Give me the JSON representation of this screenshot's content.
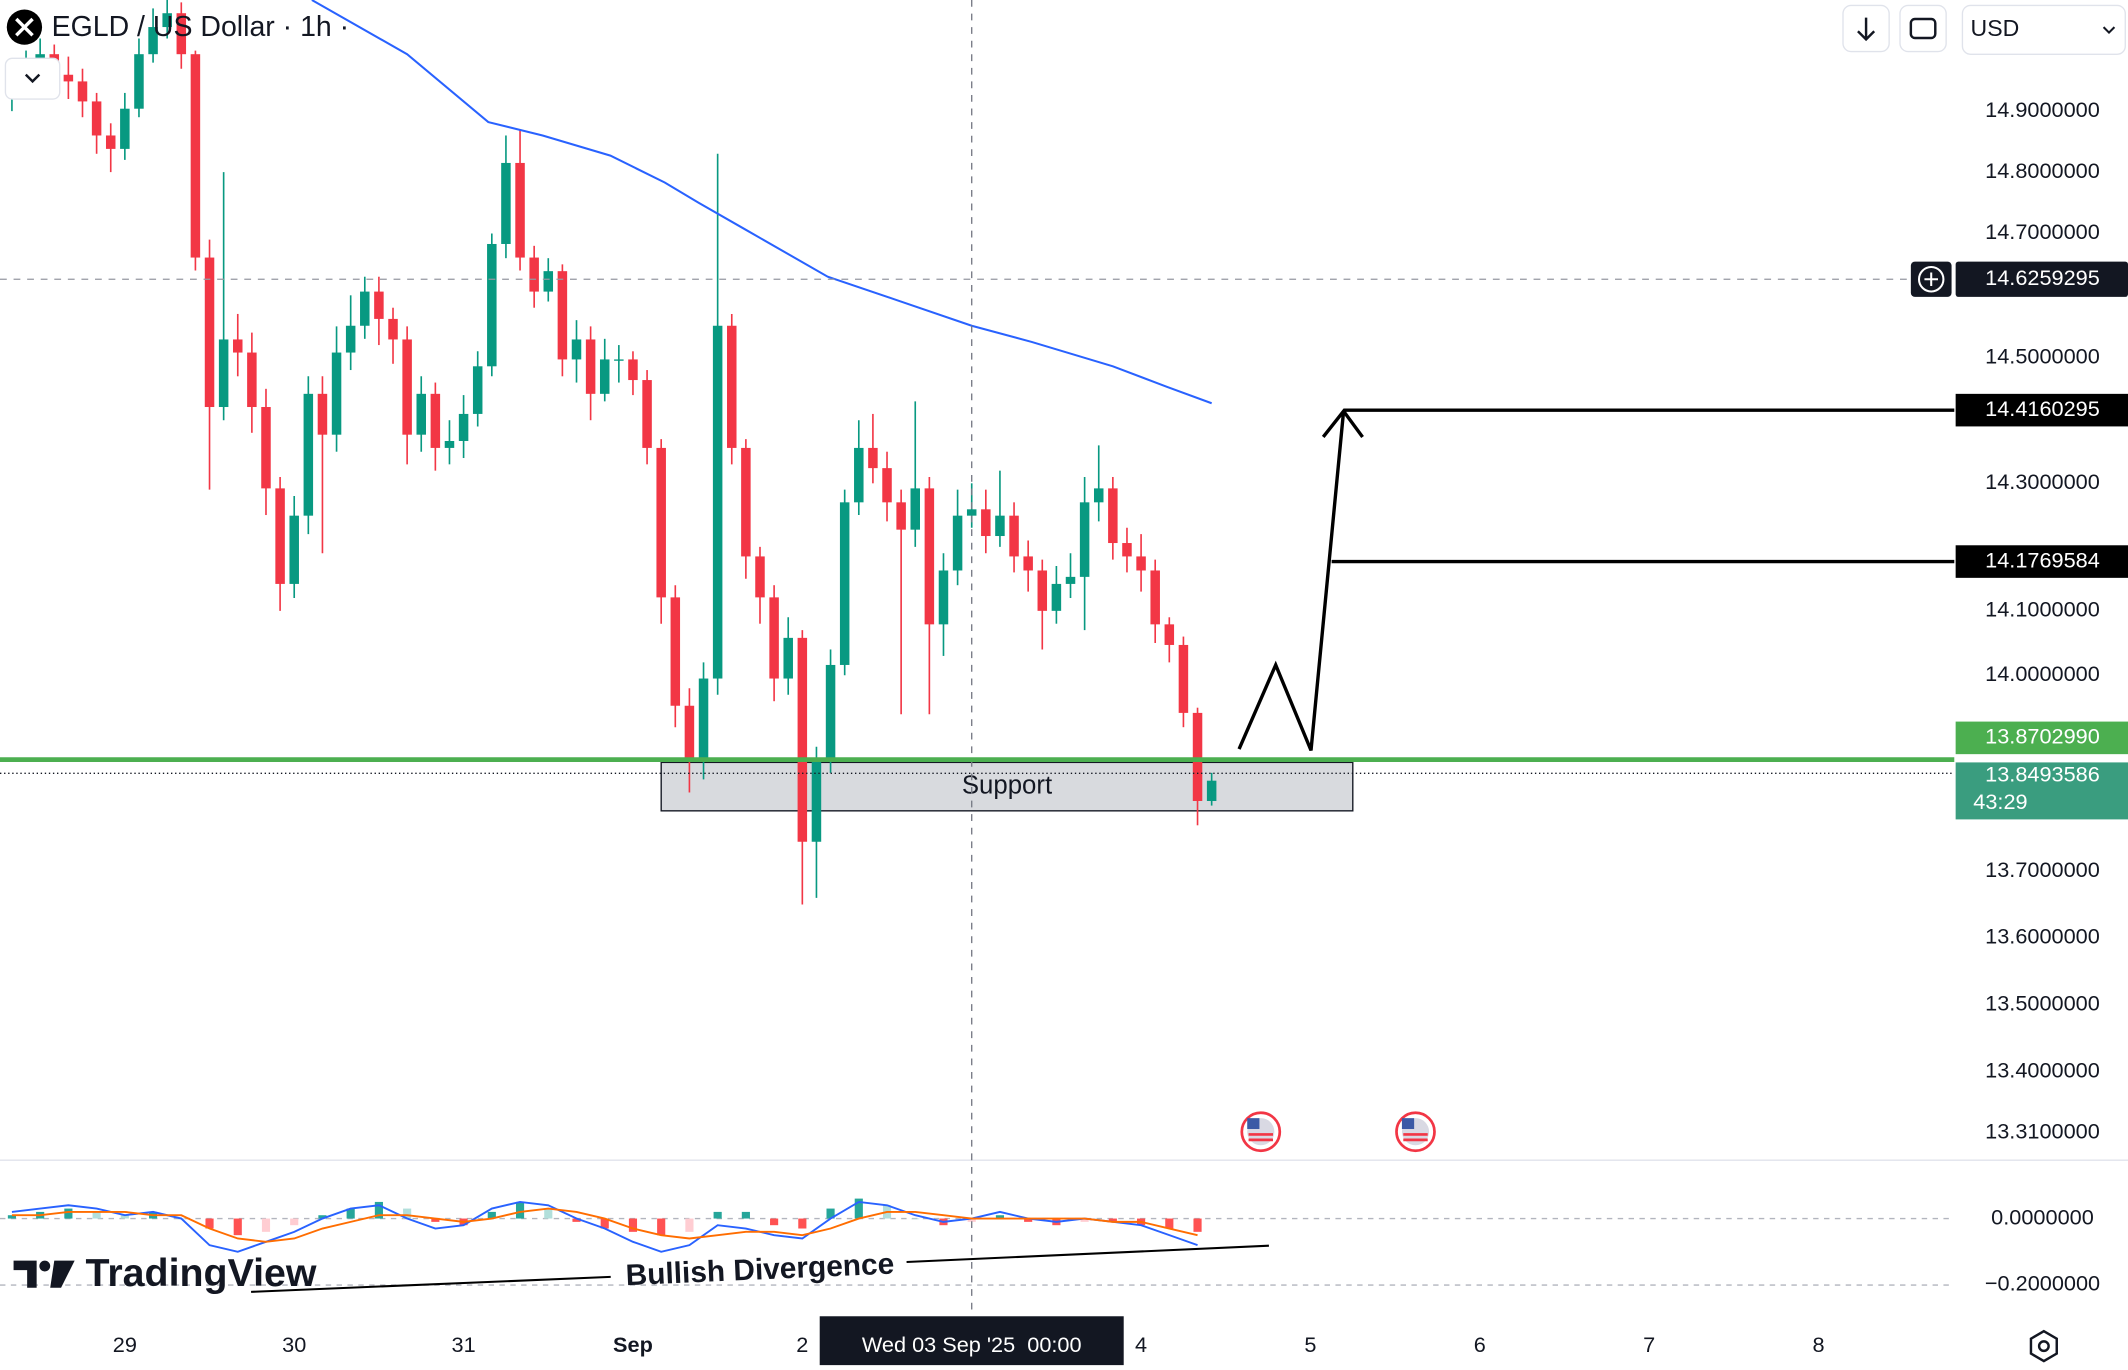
{
  "chart_data": {
    "type": "candlestick",
    "title": "EGLD / US Dollar · 1h ·",
    "currency": "USD",
    "up_color": "#089981",
    "down_color": "#f23645",
    "x": [
      -16,
      -14,
      -12,
      -10,
      -8,
      -6,
      -4,
      -2,
      0,
      2,
      4,
      6,
      8,
      10,
      12,
      14,
      16,
      18,
      20,
      22,
      24,
      26,
      28,
      30,
      32,
      34,
      36,
      38,
      40,
      42,
      44,
      46,
      48,
      50,
      52,
      54,
      56,
      58,
      60,
      62,
      64,
      66,
      68,
      70,
      72,
      74,
      76,
      78,
      80,
      82,
      84,
      86,
      88,
      90,
      92,
      94,
      96,
      98,
      100,
      102,
      104,
      106,
      108,
      110,
      112,
      114,
      116,
      118,
      120,
      122,
      124,
      126,
      128,
      130,
      132,
      134,
      136,
      138,
      140,
      142,
      144,
      146,
      148,
      150,
      152,
      154
    ],
    "open": [
      14.93,
      14.949,
      14.983,
      14.994,
      14.96,
      14.949,
      14.916,
      14.86,
      14.838,
      14.904,
      14.994,
      15.039,
      15.062,
      14.994,
      14.661,
      14.421,
      14.529,
      14.508,
      14.421,
      14.292,
      14.142,
      14.249,
      14.442,
      14.377,
      14.508,
      14.551,
      14.606,
      14.562,
      14.529,
      14.377,
      14.442,
      14.356,
      14.367,
      14.41,
      14.486,
      14.683,
      14.815,
      14.661,
      14.606,
      14.639,
      14.497,
      14.529,
      14.442,
      14.497,
      14.497,
      14.464,
      14.356,
      14.121,
      13.953,
      13.869,
      13.995,
      14.551,
      14.356,
      14.185,
      14.121,
      13.995,
      14.058,
      13.745,
      13.869,
      14.016,
      14.27,
      14.356,
      14.324,
      14.27,
      14.227,
      14.292,
      14.079,
      14.163,
      14.249,
      14.259,
      14.217,
      14.249,
      14.185,
      14.163,
      14.1,
      14.142,
      14.153,
      14.27,
      14.292,
      14.206,
      14.185,
      14.163,
      14.079,
      14.047,
      13.942,
      13.807
    ],
    "high": [
      14.97,
      15.0,
      15.02,
      15.01,
      14.99,
      14.97,
      14.93,
      14.88,
      14.93,
      15.02,
      15.07,
      15.09,
      15.08,
      15.0,
      14.69,
      14.8,
      14.57,
      14.54,
      14.45,
      14.31,
      14.28,
      14.47,
      14.47,
      14.55,
      14.6,
      14.63,
      14.63,
      14.58,
      14.55,
      14.47,
      14.46,
      14.4,
      14.44,
      14.51,
      14.7,
      14.86,
      14.87,
      14.68,
      14.66,
      14.65,
      14.56,
      14.55,
      14.53,
      14.52,
      14.51,
      14.48,
      14.37,
      14.14,
      13.98,
      14.02,
      14.83,
      14.57,
      14.37,
      14.2,
      14.14,
      14.09,
      14.07,
      13.89,
      14.04,
      14.29,
      14.4,
      14.41,
      14.35,
      14.29,
      14.43,
      14.31,
      14.19,
      14.29,
      14.3,
      14.29,
      14.32,
      14.27,
      14.21,
      14.18,
      14.17,
      14.19,
      14.31,
      14.36,
      14.31,
      14.23,
      14.22,
      14.18,
      14.09,
      14.06,
      13.95,
      13.85
    ],
    "low": [
      14.9,
      14.93,
      14.96,
      14.94,
      14.92,
      14.89,
      14.83,
      14.8,
      14.82,
      14.89,
      14.98,
      15.02,
      14.97,
      14.64,
      14.29,
      14.4,
      14.47,
      14.38,
      14.25,
      14.1,
      14.12,
      14.22,
      14.19,
      14.35,
      14.48,
      14.53,
      14.52,
      14.49,
      14.33,
      14.35,
      14.32,
      14.33,
      14.34,
      14.39,
      14.47,
      14.66,
      14.64,
      14.58,
      14.59,
      14.47,
      14.46,
      14.4,
      14.43,
      14.46,
      14.44,
      14.33,
      14.08,
      13.92,
      13.82,
      13.84,
      13.97,
      14.33,
      14.15,
      14.08,
      13.96,
      13.97,
      13.65,
      13.66,
      13.85,
      14.0,
      14.25,
      14.3,
      14.24,
      13.94,
      14.2,
      13.94,
      14.03,
      14.14,
      14.23,
      14.19,
      14.2,
      14.16,
      14.13,
      14.04,
      14.08,
      14.12,
      14.07,
      14.24,
      14.18,
      14.16,
      14.13,
      14.05,
      14.02,
      13.92,
      13.77,
      13.8
    ],
    "close": [
      14.949,
      14.983,
      14.994,
      14.96,
      14.949,
      14.916,
      14.86,
      14.838,
      14.904,
      14.994,
      15.039,
      15.062,
      14.994,
      14.661,
      14.421,
      14.529,
      14.508,
      14.421,
      14.292,
      14.142,
      14.249,
      14.442,
      14.377,
      14.508,
      14.551,
      14.606,
      14.562,
      14.529,
      14.377,
      14.442,
      14.356,
      14.367,
      14.41,
      14.486,
      14.683,
      14.815,
      14.661,
      14.606,
      14.639,
      14.497,
      14.529,
      14.442,
      14.497,
      14.497,
      14.464,
      14.356,
      14.121,
      13.953,
      13.869,
      13.995,
      14.551,
      14.356,
      14.185,
      14.121,
      13.995,
      14.058,
      13.745,
      13.869,
      14.016,
      14.27,
      14.356,
      14.324,
      14.27,
      14.227,
      14.292,
      14.079,
      14.163,
      14.249,
      14.259,
      14.217,
      14.249,
      14.185,
      14.163,
      14.1,
      14.142,
      14.153,
      14.27,
      14.292,
      14.206,
      14.185,
      14.163,
      14.079,
      14.047,
      13.942,
      13.807,
      13.838
    ],
    "xlim": [
      -17.69,
      259.23
    ],
    "xticks": [
      {
        "value": 0,
        "label": "29"
      },
      {
        "value": 24,
        "label": "30"
      },
      {
        "value": 48,
        "label": "31"
      },
      {
        "value": 72,
        "label": "Sep"
      },
      {
        "value": 96,
        "label": "2"
      },
      {
        "value": 144,
        "label": "4"
      },
      {
        "value": 168,
        "label": "5"
      },
      {
        "value": 192,
        "label": "6"
      },
      {
        "value": 216,
        "label": "7"
      },
      {
        "value": 240,
        "label": "8"
      }
    ],
    "ylim": [
      13.27,
      15.084
    ],
    "log_scale": true,
    "yticks": [
      {
        "value": 14.9,
        "label": "14.9000000"
      },
      {
        "value": 14.8,
        "label": "14.8000000"
      },
      {
        "value": 14.7,
        "label": "14.7000000"
      },
      {
        "value": 14.5,
        "label": "14.5000000"
      },
      {
        "value": 14.3,
        "label": "14.3000000"
      },
      {
        "value": 14.1,
        "label": "14.1000000"
      },
      {
        "value": 14.0,
        "label": "14.0000000"
      },
      {
        "value": 13.7,
        "label": "13.7000000"
      },
      {
        "value": 13.6,
        "label": "13.6000000"
      },
      {
        "value": 13.5,
        "label": "13.5000000"
      },
      {
        "value": 13.4,
        "label": "13.4000000"
      },
      {
        "value": 13.31,
        "label": "13.3100000"
      }
    ],
    "moving_average": {
      "color": "#2962ff",
      "x": [
        26.5,
        40,
        51.5,
        59.2,
        68.8,
        76.5,
        81.3,
        88,
        99.6,
        109.2,
        120,
        128.5,
        140,
        147.7,
        154
      ],
      "values": [
        15.084,
        14.994,
        14.882,
        14.86,
        14.827,
        14.783,
        14.75,
        14.706,
        14.63,
        14.593,
        14.551,
        14.525,
        14.486,
        14.453,
        14.427
      ]
    },
    "support": {
      "label": "Support",
      "x": [
        76,
        174
      ],
      "y": [
        13.792,
        13.866
      ]
    },
    "price_lines": [
      {
        "value": 14.4160295,
        "label": "14.4160295",
        "color": "#000000",
        "from": 172.7
      },
      {
        "value": 14.1769584,
        "label": "14.1769584",
        "color": "#000000",
        "from": 171
      },
      {
        "value": 13.870299,
        "label": "13.8702990",
        "color": "#4caf50"
      }
    ],
    "current_price": {
      "value": 13.8493586,
      "label": "13.8493586",
      "countdown": "43:29",
      "color": "#3a9d7f"
    },
    "crosshair": {
      "x": 120,
      "x_label": "Wed 03 Sep '25  00:00",
      "y": 14.6259295,
      "y_label": "14.6259295"
    },
    "annotation": "Bullish Divergence",
    "macd": {
      "x": [
        -16,
        -12,
        -8,
        -4,
        0,
        4,
        8,
        12,
        16,
        20,
        24,
        28,
        32,
        36,
        40,
        44,
        48,
        52,
        56,
        60,
        64,
        68,
        72,
        76,
        80,
        84,
        88,
        92,
        96,
        100,
        104,
        108,
        112,
        116,
        120,
        124,
        128,
        132,
        136,
        140,
        144,
        148,
        152
      ],
      "histogram": [
        0.01,
        0.02,
        0.03,
        0.02,
        0.01,
        0.02,
        0.0,
        -0.03,
        -0.05,
        -0.04,
        -0.02,
        0.01,
        0.03,
        0.05,
        0.03,
        -0.01,
        -0.02,
        0.02,
        0.05,
        0.03,
        -0.01,
        -0.03,
        -0.04,
        -0.05,
        -0.04,
        0.02,
        0.02,
        -0.02,
        -0.03,
        0.03,
        0.06,
        0.04,
        0.0,
        -0.02,
        -0.01,
        0.01,
        -0.01,
        -0.02,
        -0.01,
        -0.01,
        -0.02,
        -0.03,
        -0.04
      ],
      "macd": [
        0.02,
        0.03,
        0.04,
        0.03,
        0.01,
        0.02,
        0.0,
        -0.08,
        -0.1,
        -0.07,
        -0.04,
        0.0,
        0.03,
        0.04,
        0.0,
        -0.03,
        -0.02,
        0.03,
        0.05,
        0.04,
        0.0,
        -0.03,
        -0.07,
        -0.1,
        -0.08,
        -0.02,
        -0.03,
        -0.05,
        -0.06,
        0.0,
        0.05,
        0.04,
        0.01,
        -0.01,
        0.0,
        0.02,
        0.0,
        -0.01,
        0.0,
        -0.01,
        -0.02,
        -0.05,
        -0.08
      ],
      "signal": [
        0.01,
        0.01,
        0.02,
        0.02,
        0.02,
        0.01,
        0.01,
        -0.03,
        -0.06,
        -0.07,
        -0.06,
        -0.03,
        -0.01,
        0.01,
        0.01,
        0.0,
        -0.01,
        0.0,
        0.02,
        0.03,
        0.02,
        0.0,
        -0.03,
        -0.05,
        -0.06,
        -0.05,
        -0.04,
        -0.04,
        -0.05,
        -0.03,
        0.0,
        0.02,
        0.02,
        0.01,
        0.0,
        0.0,
        0.0,
        0.0,
        0.0,
        -0.01,
        -0.01,
        -0.03,
        -0.05
      ],
      "macd_color": "#2962ff",
      "signal_color": "#ff6d00",
      "ylim": [
        -0.294,
        0.1755
      ],
      "yticks": [
        {
          "value": 0,
          "label": "0.0000000"
        },
        {
          "value": -0.2,
          "label": "−0.2000000"
        }
      ]
    }
  },
  "branding": "TradingView"
}
